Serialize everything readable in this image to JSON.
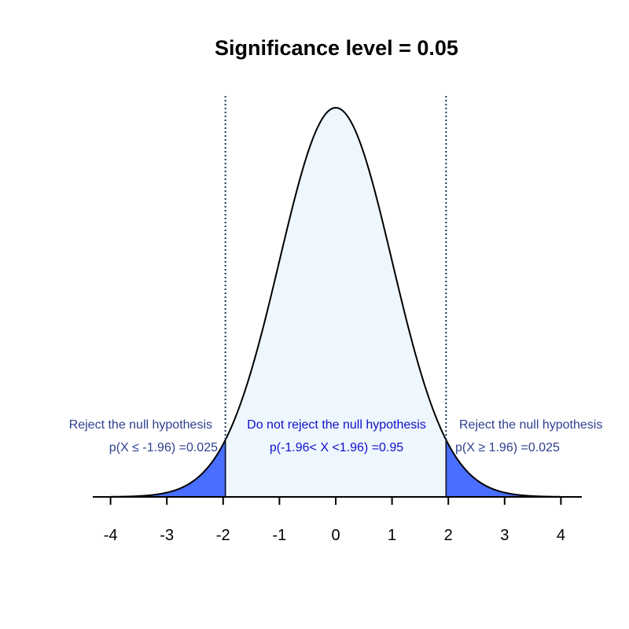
{
  "chart_data": {
    "type": "area",
    "title": "Significance level =  0.05",
    "xlabel": "",
    "ylabel": "",
    "distribution": "standard normal",
    "xlim": [
      -4.3,
      4.3
    ],
    "xticks": [
      -4,
      -3,
      -2,
      -1,
      0,
      1,
      2,
      3,
      4
    ],
    "x_tick_labels": [
      "-4",
      "-3",
      "-2",
      "-1",
      "0",
      "1",
      "2",
      "3",
      "4"
    ],
    "critical_values": [
      -1.96,
      1.96
    ],
    "curve_x_range": [
      -4,
      4
    ],
    "grid": false,
    "regions": [
      {
        "from": -4,
        "to": -1.96,
        "color": "#4A6EFF",
        "label": "Reject the null hypothesis",
        "prob_label": "p(X ≤ -1.96) =0.025",
        "label_color": "#2E3F8F"
      },
      {
        "from": -1.96,
        "to": 1.96,
        "color": "#EEF6FE",
        "label": "Do not reject the null hypothesis",
        "prob_label": "p(-1.96< X <1.96) =0.95",
        "label_color": "#1010C8"
      },
      {
        "from": 1.96,
        "to": 4,
        "color": "#4A6EFF",
        "label": "Reject the null hypothesis",
        "prob_label": "p(X ≥ 1.96) =0.025",
        "label_color": "#2E3F8F"
      }
    ],
    "colors": {
      "curve": "#000000",
      "critical_line": "#1A3060"
    }
  }
}
